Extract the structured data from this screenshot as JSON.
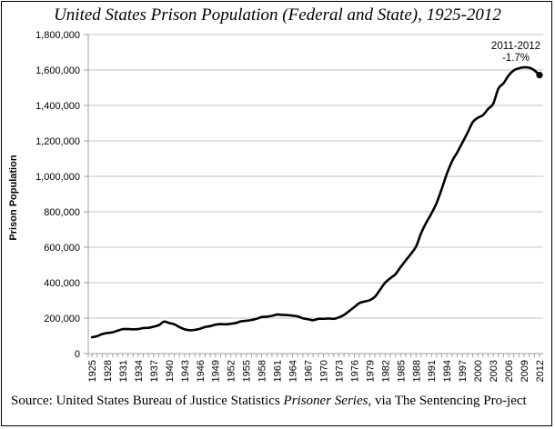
{
  "chart_data": {
    "type": "line",
    "title": "United States Prison Population (Federal and State), 1925-2012",
    "xlabel": "",
    "ylabel": "Prison Population",
    "ylim": [
      0,
      1800000
    ],
    "xlim": [
      1925,
      2012
    ],
    "grid": "horizontal",
    "legend": "none",
    "y_ticks": [
      0,
      200000,
      400000,
      600000,
      800000,
      1000000,
      1200000,
      1400000,
      1600000,
      1800000
    ],
    "y_tick_labels": [
      "0",
      "200,000",
      "400,000",
      "600,000",
      "800,000",
      "1,000,000",
      "1,200,000",
      "1,400,000",
      "1,600,000",
      "1,800,000"
    ],
    "x_tick_labels": [
      "1925",
      "1928",
      "1931",
      "1934",
      "1937",
      "1940",
      "1943",
      "1946",
      "1949",
      "1952",
      "1955",
      "1958",
      "1961",
      "1964",
      "1967",
      "1970",
      "1973",
      "1976",
      "1979",
      "1982",
      "1985",
      "1988",
      "1991",
      "1994",
      "1997",
      "2000",
      "2003",
      "2006",
      "2009",
      "2012"
    ],
    "series": [
      {
        "name": "Prison Population",
        "color": "#000000",
        "x": [
          1925,
          1926,
          1927,
          1928,
          1929,
          1930,
          1931,
          1932,
          1933,
          1934,
          1935,
          1936,
          1937,
          1938,
          1939,
          1940,
          1941,
          1942,
          1943,
          1944,
          1945,
          1946,
          1947,
          1948,
          1949,
          1950,
          1951,
          1952,
          1953,
          1954,
          1955,
          1956,
          1957,
          1958,
          1959,
          1960,
          1961,
          1962,
          1963,
          1964,
          1965,
          1966,
          1967,
          1968,
          1969,
          1970,
          1971,
          1972,
          1973,
          1974,
          1975,
          1976,
          1977,
          1978,
          1979,
          1980,
          1981,
          1982,
          1983,
          1984,
          1985,
          1986,
          1987,
          1988,
          1989,
          1990,
          1991,
          1992,
          1993,
          1994,
          1995,
          1996,
          1997,
          1998,
          1999,
          2000,
          2001,
          2002,
          2003,
          2004,
          2005,
          2006,
          2007,
          2008,
          2009,
          2010,
          2011,
          2012
        ],
        "values": [
          92000,
          98000,
          110000,
          116000,
          120000,
          129000,
          138000,
          138000,
          137000,
          138000,
          144000,
          145000,
          152000,
          160000,
          180000,
          173000,
          165000,
          150000,
          137000,
          132000,
          134000,
          140000,
          150000,
          155000,
          163000,
          166000,
          165000,
          168000,
          173000,
          182000,
          185000,
          189000,
          196000,
          206000,
          208000,
          213000,
          220000,
          218000,
          217000,
          214000,
          210000,
          199000,
          194000,
          188000,
          196000,
          196000,
          198000,
          196000,
          204000,
          218000,
          240000,
          262000,
          285000,
          294000,
          301000,
          320000,
          360000,
          400000,
          425000,
          448000,
          488000,
          526000,
          562000,
          604000,
          680000,
          740000,
          790000,
          850000,
          930000,
          1015000,
          1085000,
          1135000,
          1190000,
          1245000,
          1305000,
          1330000,
          1345000,
          1380000,
          1410000,
          1495000,
          1525000,
          1570000,
          1598000,
          1610000,
          1615000,
          1613000,
          1598000,
          1571000
        ]
      }
    ],
    "annotations": [
      {
        "text_line1": "2011-2012",
        "text_line2": "-1.7%",
        "x": 2012,
        "y": 1571000,
        "marker": "dot"
      }
    ]
  },
  "source": {
    "prefix": "Source: United States Bureau of Justice Statistics ",
    "italic": "Prisoner Series",
    "suffix": ", via The Sentencing Pro-ject"
  }
}
